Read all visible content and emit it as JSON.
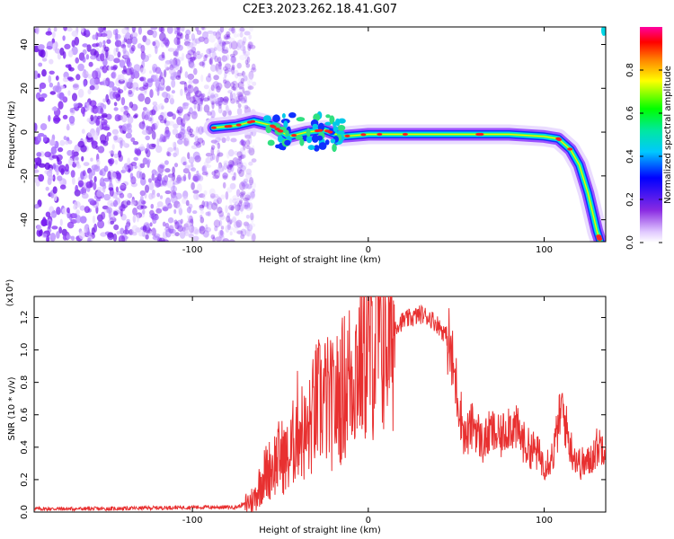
{
  "figure_title": "C2E3.2023.262.18.41.G07",
  "chart_data": [
    {
      "type": "heatmap",
      "xlabel": "Height of straight line (km)",
      "ylabel": "Frequency (Hz)",
      "xlim": [
        -190,
        135
      ],
      "ylim": [
        -50,
        48
      ],
      "x_ticks": [
        -100,
        0,
        100
      ],
      "y_ticks": [
        -40,
        -20,
        0,
        20,
        40
      ],
      "colorbar": {
        "label": "Normalized spectral amplitude",
        "range": [
          0,
          1
        ],
        "ticks": [
          "0.0",
          "0.2",
          "0.4",
          "0.6",
          "0.8"
        ]
      },
      "noise_region_x": [
        -190,
        -70
      ],
      "signal_track": [
        {
          "x": -88,
          "y": 2
        },
        {
          "x": -75,
          "y": 3
        },
        {
          "x": -65,
          "y": 5
        },
        {
          "x": -55,
          "y": 3
        },
        {
          "x": -45,
          "y": -2
        },
        {
          "x": -35,
          "y": 0
        },
        {
          "x": -25,
          "y": 1
        },
        {
          "x": -15,
          "y": -2
        },
        {
          "x": 0,
          "y": -1
        },
        {
          "x": 20,
          "y": -1
        },
        {
          "x": 50,
          "y": -1
        },
        {
          "x": 80,
          "y": -1
        },
        {
          "x": 100,
          "y": -2
        },
        {
          "x": 108,
          "y": -3
        },
        {
          "x": 115,
          "y": -8
        },
        {
          "x": 120,
          "y": -15
        },
        {
          "x": 125,
          "y": -28
        },
        {
          "x": 130,
          "y": -45
        },
        {
          "x": 132,
          "y": -50
        }
      ]
    },
    {
      "type": "line",
      "xlabel": "Height of straight line (km)",
      "ylabel": "SNR (10 * v/v)",
      "y_multiplier": "(x10⁴)",
      "xlim": [
        -190,
        135
      ],
      "ylim": [
        0,
        1.33
      ],
      "x_ticks": [
        -100,
        0,
        100
      ],
      "y_ticks": [
        "0.0",
        "0.2",
        "0.4",
        "0.6",
        "0.8",
        "1.0",
        "1.2"
      ],
      "series": [
        {
          "color": "#e83030",
          "x": [
            -190,
            -150,
            -100,
            -75,
            -70,
            -65,
            -60,
            -55,
            -50,
            -45,
            -40,
            -35,
            -30,
            -25,
            -20,
            -15,
            -10,
            -5,
            0,
            5,
            10,
            15,
            20,
            25,
            30,
            35,
            40,
            45,
            50,
            55,
            60,
            65,
            70,
            75,
            80,
            85,
            90,
            95,
            100,
            105,
            110,
            115,
            120,
            125,
            130,
            135
          ],
          "y": [
            0.02,
            0.02,
            0.03,
            0.03,
            0.05,
            0.08,
            0.22,
            0.28,
            0.35,
            0.32,
            0.55,
            0.45,
            0.65,
            0.7,
            0.65,
            0.75,
            0.85,
            0.95,
            1.0,
            1.05,
            1.1,
            1.15,
            1.18,
            1.2,
            1.22,
            1.2,
            1.15,
            1.08,
            0.78,
            0.45,
            0.55,
            0.42,
            0.5,
            0.45,
            0.55,
            0.5,
            0.4,
            0.38,
            0.3,
            0.35,
            0.65,
            0.4,
            0.3,
            0.3,
            0.4,
            0.43
          ]
        }
      ]
    }
  ]
}
